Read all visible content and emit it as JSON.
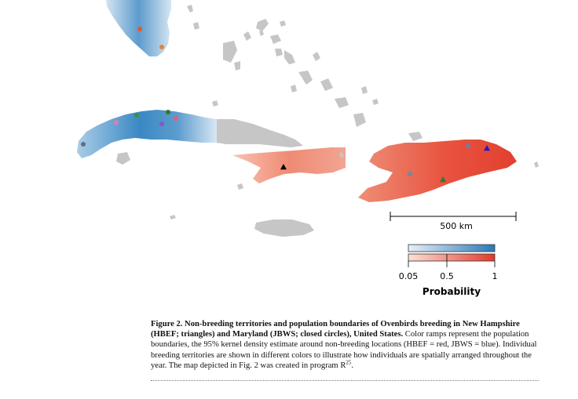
{
  "colors": {
    "land": "#c6c6c6",
    "blue_low": "#d7e8f4",
    "blue_mid": "#8fbedf",
    "blue_high": "#2f7fbf",
    "red_low": "#fbd2c6",
    "red_mid": "#f39b85",
    "red_high": "#e8493a"
  },
  "scale_bar": {
    "label": "500 km"
  },
  "legend": {
    "ticks": [
      "0.05",
      "0.5",
      "1"
    ],
    "title": "Probability"
  },
  "markers": {
    "blue_group_colors": [
      "#e05a2b",
      "#e5823a",
      "#e07dae",
      "#3f8f3f",
      "#2e7a2e",
      "#8a54c8",
      "#e0607a",
      "#666a88"
    ],
    "red_group_colors": [
      "#000000",
      "#6f7f9f",
      "#1a1acc",
      "#6d8aa0",
      "#2f7a2f"
    ]
  },
  "caption": {
    "bold": "Figure 2.  Non-breeding territories and population boundaries of Ovenbirds breeding in New Hampshire (HBEF; triangles) and Maryland (JBWS; closed circles), United States.",
    "body": " Color ramps represent the population boundaries, the 95% kernel density estimate around non-breeding locations (HBEF = red, JBWS = blue). Individual breeding territories are shown in different colors to illustrate how individuals are spatially arranged throughout the year. The map depicted in Fig. 2 was created in program R",
    "superscript": "25",
    "end": "."
  }
}
